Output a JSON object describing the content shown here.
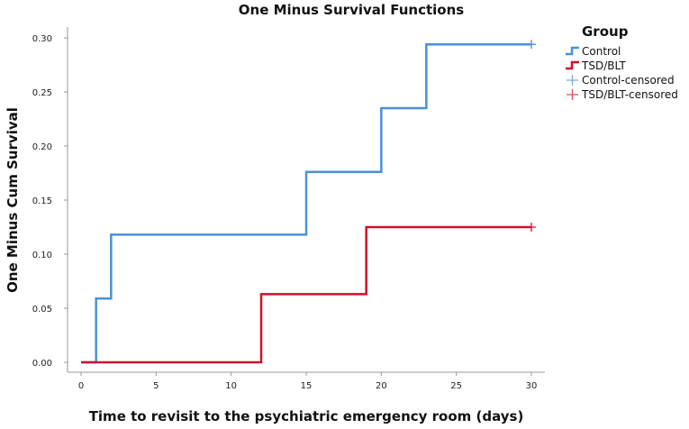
{
  "chart_data": {
    "type": "line",
    "step": true,
    "title": "One Minus Survival Functions",
    "xlabel": "Time to revisit to the psychiatric emergency room (days)",
    "ylabel": "One Minus Cum Survival",
    "xlim": [
      0,
      30
    ],
    "ylim": [
      0,
      0.3
    ],
    "xticks": [
      "0",
      "5",
      "10",
      "15",
      "20",
      "25",
      "30"
    ],
    "yticks": [
      "0.00",
      "0.05",
      "0.10",
      "0.15",
      "0.20",
      "0.25",
      "0.30"
    ],
    "grid": false,
    "legend": {
      "title": "Group",
      "position": "top-right",
      "entries": [
        "Control",
        "TSD/BLT",
        "Control-censored",
        "TSD/BLT-censored"
      ]
    },
    "series": [
      {
        "name": "Control",
        "color": "#4a90d9",
        "x": [
          0,
          1,
          2,
          15,
          20,
          23,
          30
        ],
        "y": [
          0.0,
          0.059,
          0.118,
          0.176,
          0.235,
          0.294,
          0.294
        ],
        "censored": [
          {
            "x": 30,
            "y": 0.294
          }
        ]
      },
      {
        "name": "TSD/BLT",
        "color": "#d0102e",
        "x": [
          0,
          12,
          19,
          30
        ],
        "y": [
          0.0,
          0.063,
          0.125,
          0.125
        ],
        "censored": [
          {
            "x": 30,
            "y": 0.125
          }
        ]
      }
    ]
  }
}
